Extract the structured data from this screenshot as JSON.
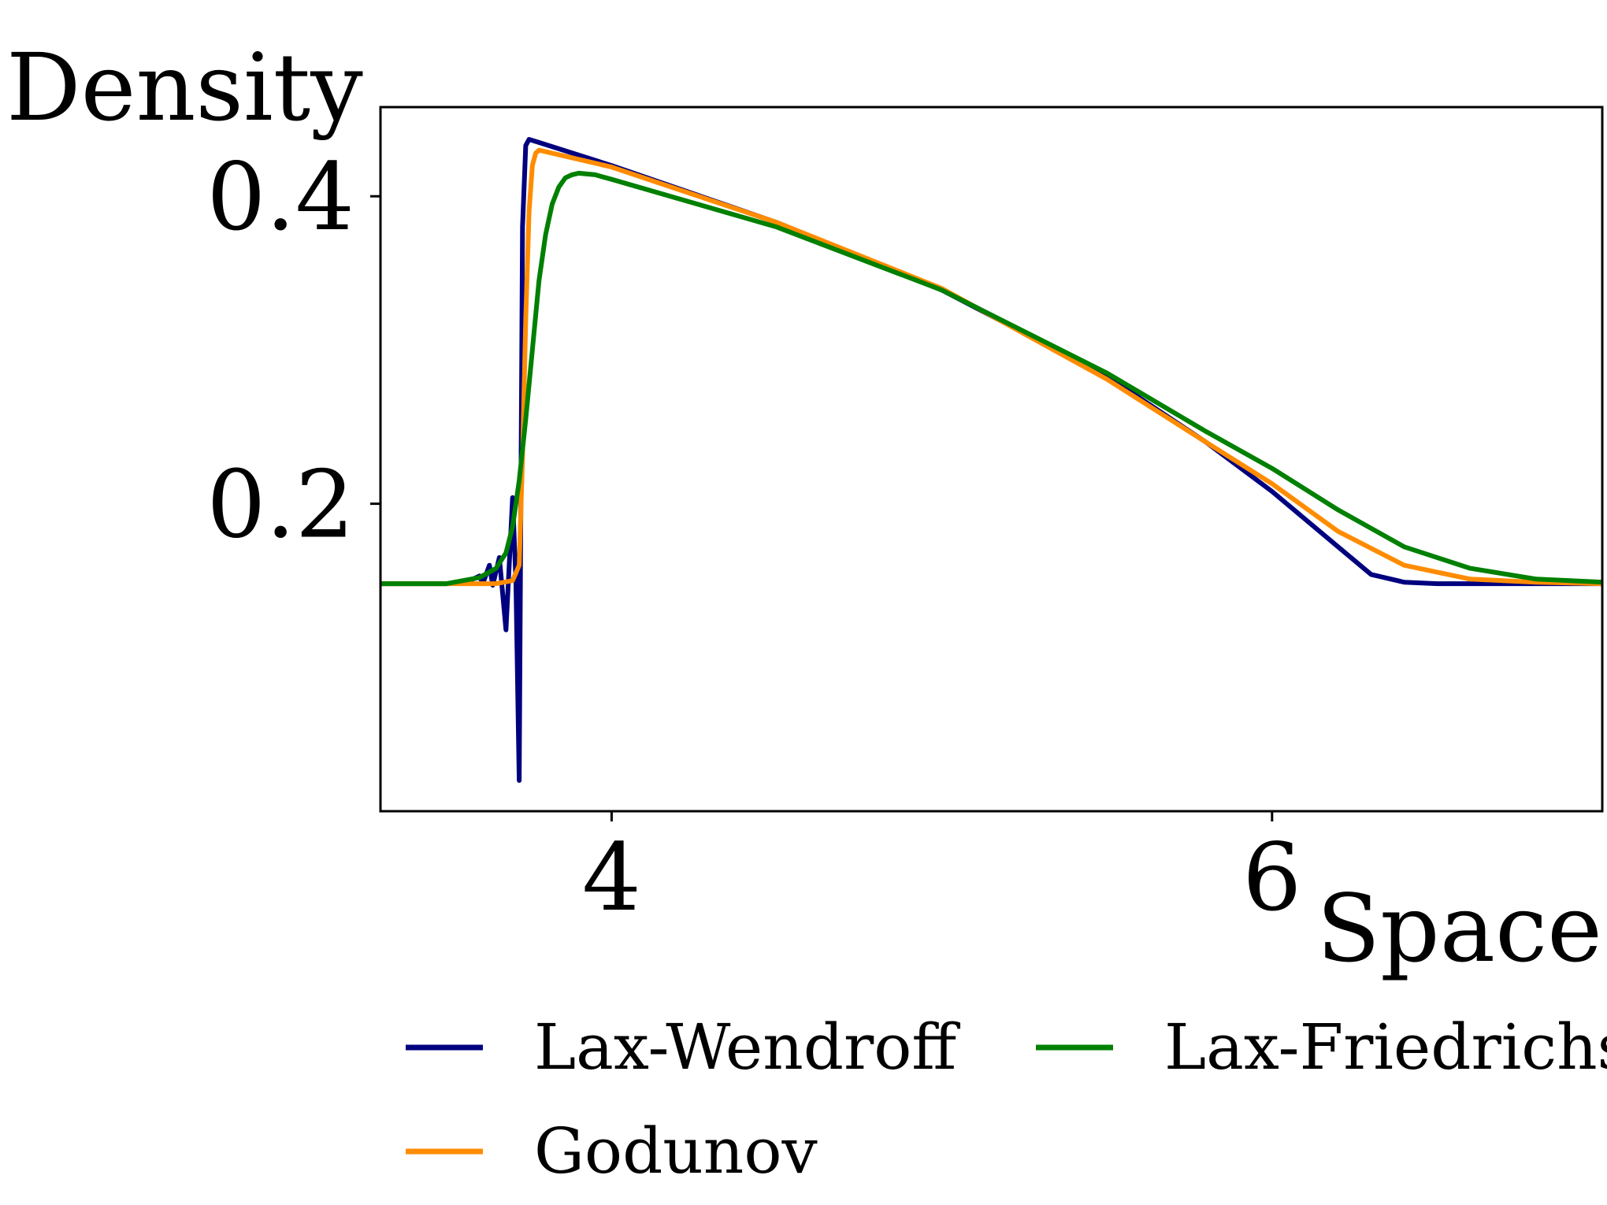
{
  "chart_data": {
    "type": "line",
    "xlabel": "Space",
    "ylabel": "Density",
    "xlim": [
      3.3,
      7.0
    ],
    "ylim": [
      0.0,
      0.458
    ],
    "xticks": [
      {
        "value": 4,
        "label": "4"
      },
      {
        "value": 6,
        "label": "6"
      }
    ],
    "yticks": [
      {
        "value": 0.2,
        "label": "0.2"
      },
      {
        "value": 0.4,
        "label": "0.4"
      }
    ],
    "grid": false,
    "legend_position": "bottom",
    "series": [
      {
        "name": "Lax-Wendroff",
        "color": "#00007f",
        "x": [
          3.3,
          3.5,
          3.56,
          3.6,
          3.61,
          3.63,
          3.64,
          3.66,
          3.68,
          3.7,
          3.71,
          3.72,
          3.73,
          3.74,
          3.75,
          3.78,
          4.0,
          4.5,
          5.0,
          5.5,
          5.8,
          6.0,
          6.2,
          6.3,
          6.4,
          6.5,
          7.0
        ],
        "y": [
          0.148,
          0.148,
          0.149,
          0.153,
          0.148,
          0.16,
          0.147,
          0.165,
          0.118,
          0.204,
          0.15,
          0.02,
          0.38,
          0.433,
          0.437,
          0.435,
          0.42,
          0.383,
          0.339,
          0.283,
          0.24,
          0.208,
          0.172,
          0.154,
          0.149,
          0.148,
          0.148
        ]
      },
      {
        "name": "Godunov",
        "color": "#ff8c00",
        "x": [
          3.3,
          3.65,
          3.7,
          3.72,
          3.73,
          3.74,
          3.75,
          3.76,
          3.77,
          3.78,
          3.8,
          4.0,
          4.5,
          5.0,
          5.5,
          5.8,
          6.0,
          6.2,
          6.4,
          6.6,
          6.8,
          7.0
        ],
        "y": [
          0.148,
          0.148,
          0.15,
          0.16,
          0.23,
          0.32,
          0.39,
          0.42,
          0.428,
          0.43,
          0.429,
          0.419,
          0.383,
          0.34,
          0.281,
          0.24,
          0.213,
          0.182,
          0.16,
          0.151,
          0.149,
          0.148
        ]
      },
      {
        "name": "Lax-Friedrichs",
        "color": "#008000",
        "x": [
          3.3,
          3.5,
          3.6,
          3.65,
          3.68,
          3.7,
          3.72,
          3.74,
          3.76,
          3.78,
          3.8,
          3.82,
          3.84,
          3.86,
          3.88,
          3.9,
          3.95,
          4.0,
          4.5,
          5.0,
          5.5,
          5.8,
          6.0,
          6.2,
          6.4,
          6.6,
          6.8,
          7.0
        ],
        "y": [
          0.148,
          0.148,
          0.152,
          0.158,
          0.168,
          0.185,
          0.215,
          0.255,
          0.3,
          0.345,
          0.375,
          0.395,
          0.406,
          0.412,
          0.414,
          0.415,
          0.414,
          0.411,
          0.38,
          0.339,
          0.285,
          0.247,
          0.223,
          0.196,
          0.172,
          0.158,
          0.151,
          0.149
        ]
      }
    ]
  }
}
